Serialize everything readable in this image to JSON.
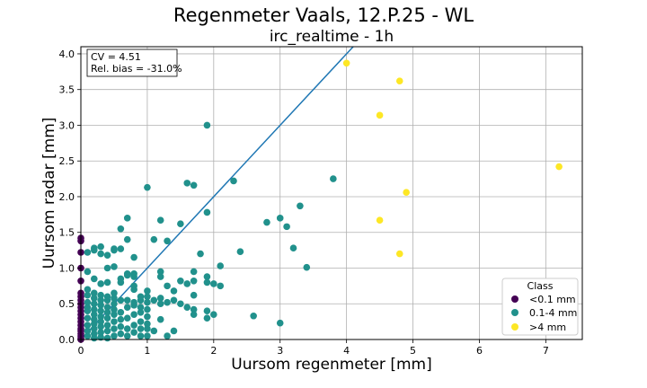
{
  "chart_data": {
    "type": "scatter",
    "title": "Regenmeter Vaals, 12.P.25 - WL",
    "subtitle": "irc_realtime - 1h",
    "xlabel": "Uursom regenmeter [mm]",
    "ylabel": "Uursom radar [mm]",
    "xlim": [
      0,
      7.55
    ],
    "ylim": [
      0,
      4.1
    ],
    "xticks": [
      "0",
      "1",
      "2",
      "3",
      "4",
      "5",
      "6",
      "7"
    ],
    "yticks": [
      "0.0",
      "0.5",
      "1.0",
      "1.5",
      "2.0",
      "2.5",
      "3.0",
      "3.5",
      "4.0"
    ],
    "grid": true,
    "annotation": {
      "cv": "CV = 4.51",
      "bias": "Rel. bias = -31.0%"
    },
    "reference_line": {
      "slope": 1,
      "color": "#1f77b4"
    },
    "legend": {
      "title": "Class",
      "position": "lower-right",
      "entries": [
        "<0.1 mm",
        "0.1-4 mm",
        ">4 mm"
      ]
    },
    "series": [
      {
        "name": "<0.1 mm",
        "color": "#440154",
        "x": [
          0,
          0,
          0,
          0,
          0,
          0,
          0,
          0,
          0,
          0,
          0,
          0,
          0,
          0,
          0,
          0,
          0,
          0,
          0,
          0,
          0
        ],
        "y": [
          0.0,
          0.02,
          0.05,
          0.08,
          0.12,
          0.15,
          0.2,
          0.25,
          0.3,
          0.35,
          0.4,
          0.45,
          0.5,
          0.55,
          0.6,
          0.65,
          0.82,
          1.0,
          1.22,
          1.38,
          1.42
        ]
      },
      {
        "name": "0.1-4 mm",
        "color": "#21918c",
        "x": [
          0.1,
          0.1,
          0.1,
          0.1,
          0.1,
          0.1,
          0.1,
          0.1,
          0.1,
          0.1,
          0.1,
          0.2,
          0.2,
          0.2,
          0.2,
          0.2,
          0.2,
          0.2,
          0.2,
          0.2,
          0.2,
          0.2,
          0.2,
          0.2,
          0.3,
          0.3,
          0.3,
          0.3,
          0.3,
          0.3,
          0.3,
          0.3,
          0.3,
          0.3,
          0.3,
          0.3,
          0.4,
          0.4,
          0.4,
          0.4,
          0.4,
          0.4,
          0.4,
          0.4,
          0.4,
          0.4,
          0.4,
          0.5,
          0.5,
          0.5,
          0.5,
          0.5,
          0.5,
          0.5,
          0.5,
          0.5,
          0.5,
          0.5,
          0.6,
          0.6,
          0.6,
          0.6,
          0.6,
          0.6,
          0.6,
          0.6,
          0.6,
          0.7,
          0.7,
          0.7,
          0.7,
          0.7,
          0.7,
          0.7,
          0.7,
          0.7,
          0.8,
          0.8,
          0.8,
          0.8,
          0.8,
          0.8,
          0.8,
          0.8,
          0.8,
          0.8,
          0.9,
          0.9,
          0.9,
          0.9,
          0.9,
          0.9,
          0.9,
          1.0,
          1.0,
          1.0,
          1.0,
          1.0,
          1.0,
          1.0,
          1.0,
          1.0,
          1.1,
          1.1,
          1.1,
          1.2,
          1.2,
          1.2,
          1.2,
          1.2,
          1.2,
          1.3,
          1.3,
          1.3,
          1.3,
          1.4,
          1.4,
          1.4,
          1.5,
          1.5,
          1.5,
          1.6,
          1.6,
          1.6,
          1.7,
          1.7,
          1.7,
          1.7,
          1.7,
          1.7,
          1.8,
          1.9,
          1.9,
          1.9,
          1.9,
          1.9,
          1.9,
          2.0,
          2.0,
          2.1,
          2.1,
          2.3,
          2.4,
          2.6,
          2.8,
          3.0,
          3.0,
          3.1,
          3.2,
          3.3,
          3.4,
          3.8
        ],
        "y": [
          0.05,
          0.12,
          0.2,
          0.3,
          0.4,
          0.45,
          0.52,
          0.62,
          0.7,
          0.95,
          1.22,
          0.02,
          0.08,
          0.15,
          0.22,
          0.28,
          0.35,
          0.42,
          0.5,
          0.58,
          0.65,
          0.85,
          1.25,
          1.28,
          0.03,
          0.1,
          0.18,
          0.25,
          0.32,
          0.4,
          0.48,
          0.55,
          0.62,
          0.78,
          1.2,
          1.3,
          0.02,
          0.12,
          0.2,
          0.3,
          0.38,
          0.45,
          0.55,
          0.6,
          0.8,
          1.0,
          1.18,
          0.05,
          0.15,
          0.25,
          0.35,
          0.42,
          0.5,
          0.58,
          0.65,
          1.02,
          1.25,
          1.27,
          0.08,
          0.18,
          0.28,
          0.38,
          0.55,
          0.8,
          0.85,
          1.27,
          1.55,
          0.05,
          0.15,
          0.3,
          0.45,
          0.55,
          0.9,
          0.92,
          1.4,
          1.7,
          0.1,
          0.2,
          0.35,
          0.48,
          0.52,
          0.7,
          0.75,
          0.88,
          0.92,
          1.15,
          0.05,
          0.15,
          0.25,
          0.38,
          0.45,
          0.55,
          0.6,
          0.05,
          0.15,
          0.22,
          0.32,
          0.42,
          0.52,
          0.6,
          0.68,
          2.13,
          0.12,
          0.55,
          1.4,
          0.28,
          0.5,
          0.58,
          0.88,
          0.95,
          1.67,
          0.05,
          0.52,
          0.75,
          1.38,
          0.12,
          0.55,
          0.68,
          0.5,
          0.82,
          1.62,
          0.45,
          0.78,
          2.19,
          0.35,
          0.42,
          0.62,
          0.82,
          0.95,
          2.16,
          1.2,
          0.3,
          0.4,
          0.8,
          0.88,
          1.78,
          3.0,
          0.35,
          0.78,
          0.75,
          1.03,
          2.22,
          1.23,
          0.33,
          1.64,
          0.23,
          1.7,
          1.58,
          1.28,
          1.87,
          1.01,
          2.25
        ]
      },
      {
        "name": ">4 mm",
        "color": "#fde725",
        "x": [
          4.0,
          4.5,
          4.5,
          4.8,
          4.8,
          4.9,
          7.2
        ],
        "y": [
          3.87,
          3.14,
          1.67,
          3.62,
          1.2,
          2.06,
          2.42
        ]
      }
    ]
  }
}
